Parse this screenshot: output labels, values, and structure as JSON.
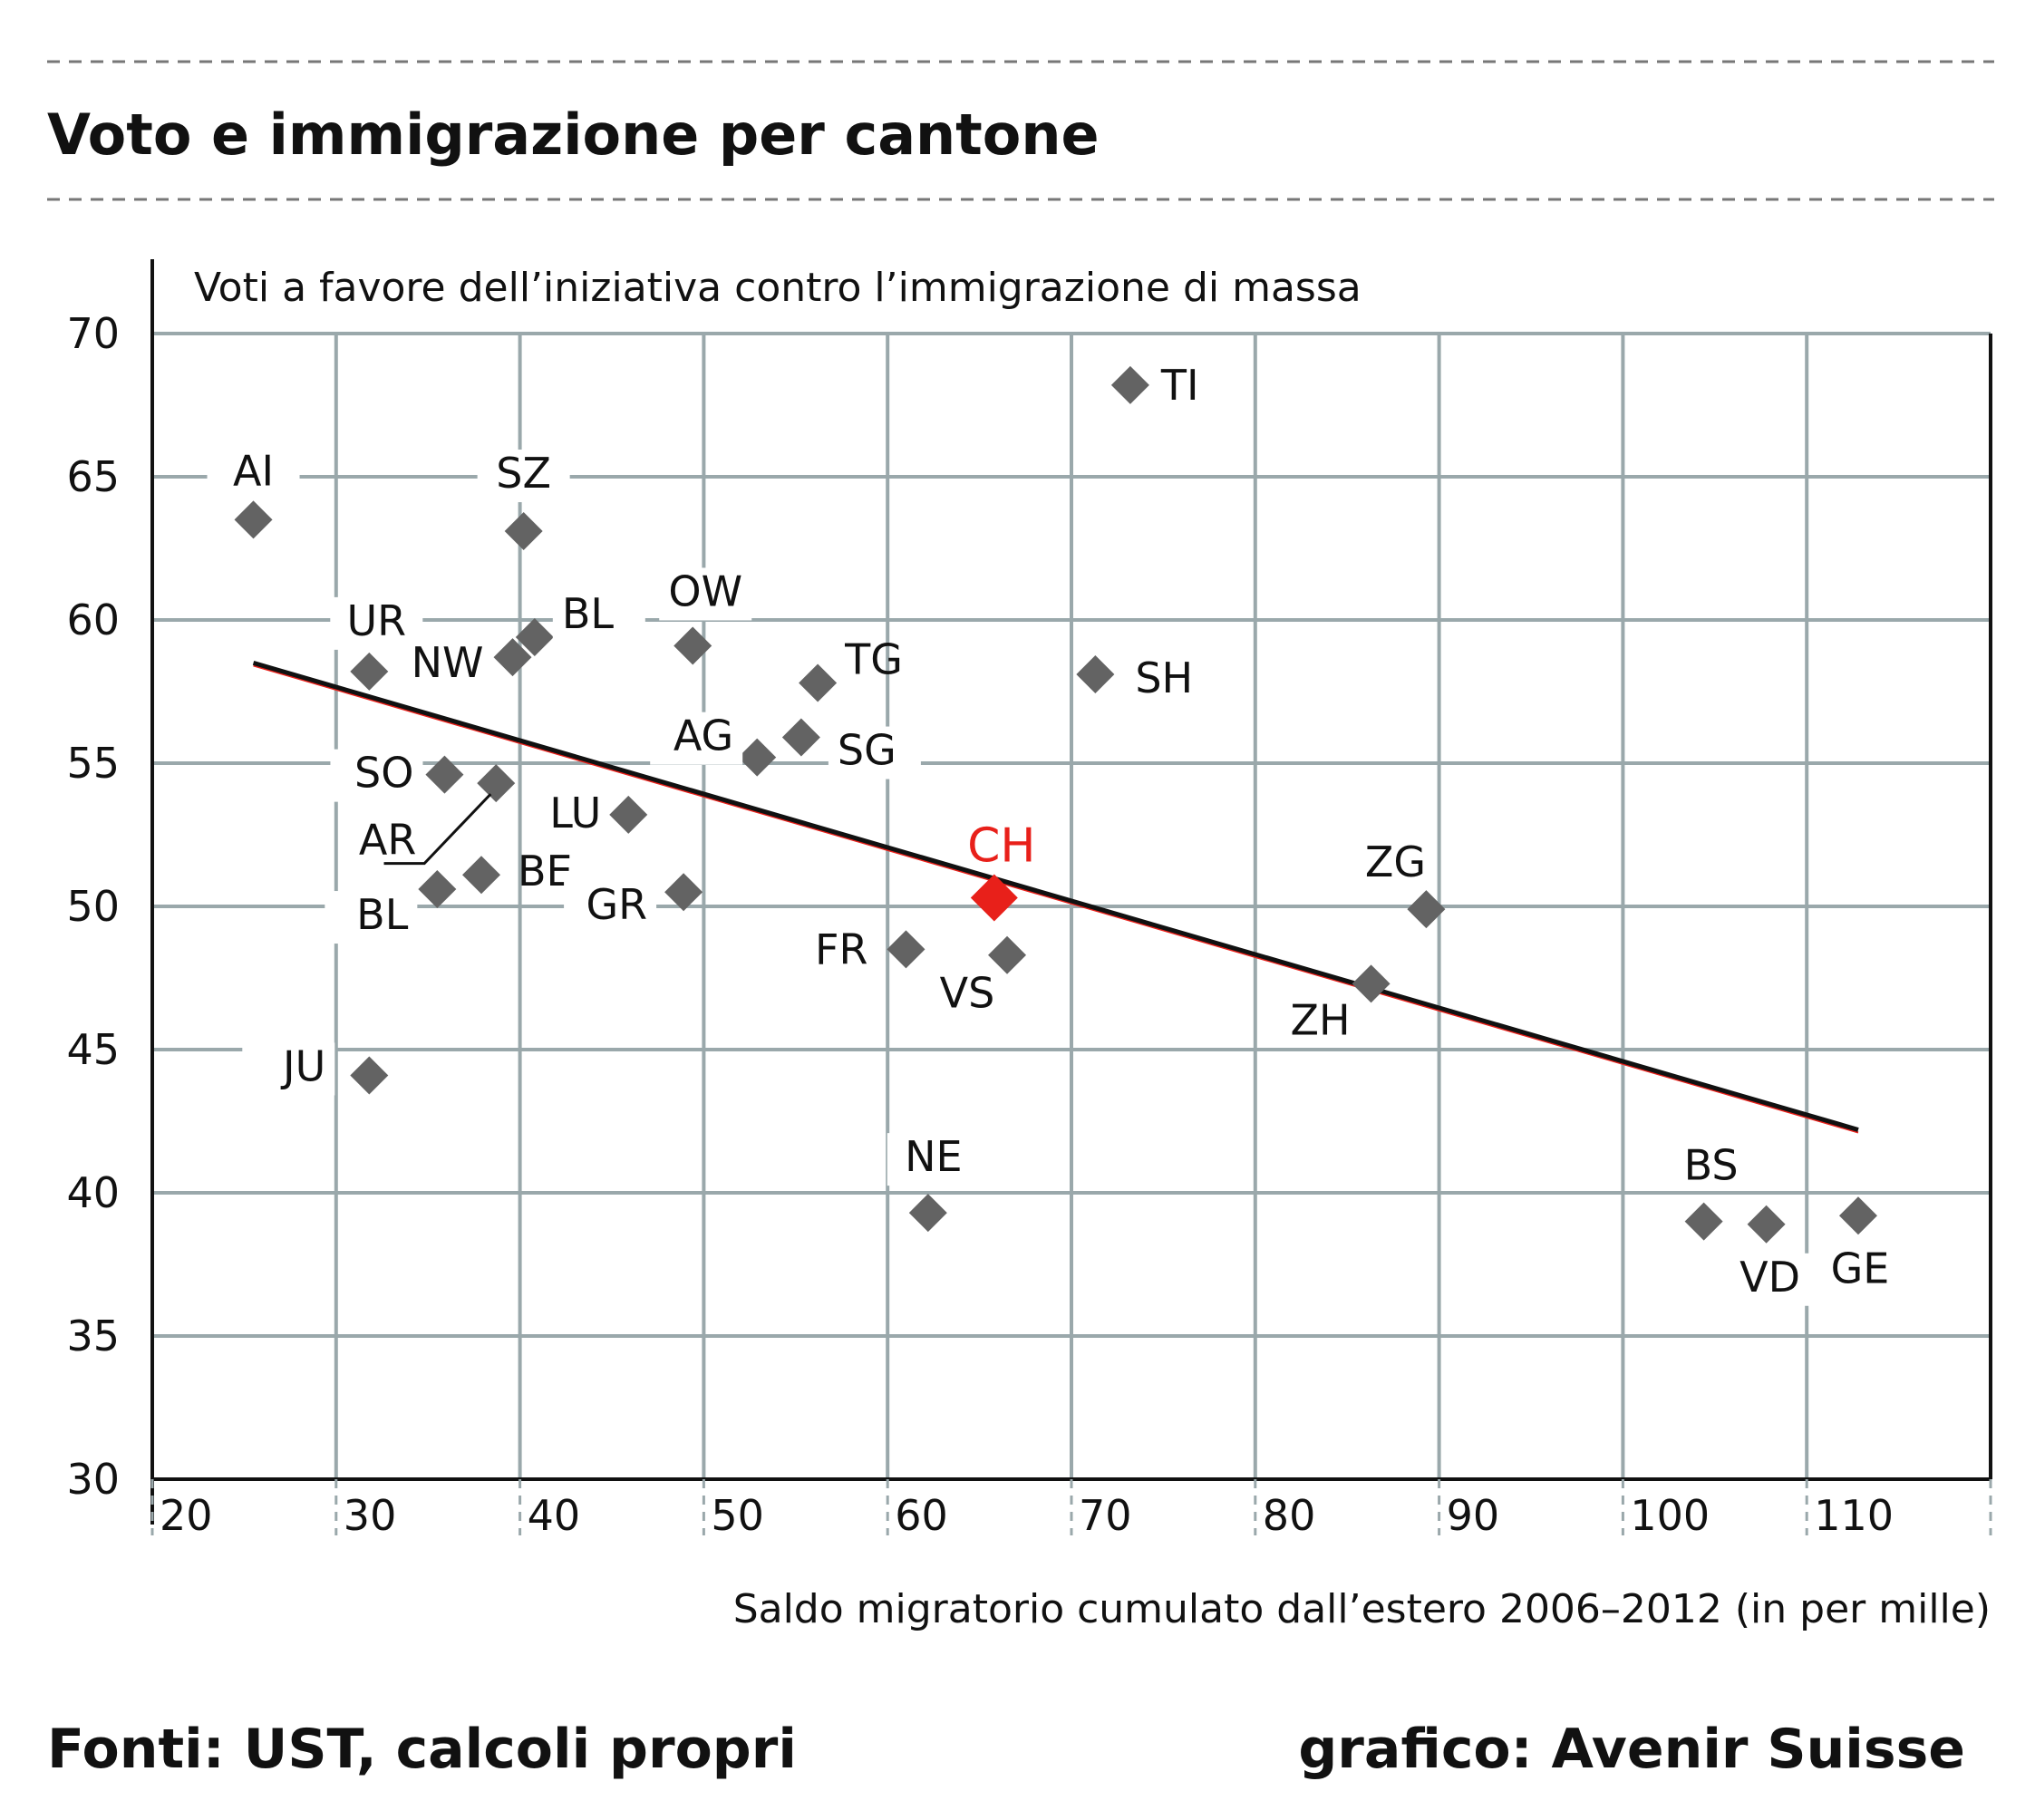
{
  "title": "Voto e immigrazione per cantone",
  "source": "Fonti: UST, calcoli propri",
  "credit": "grafico: Avenir Suisse",
  "colors": {
    "grid": "#9aa8ab",
    "marker": "#636363",
    "highlight": "#e8201a",
    "axis": "#111111",
    "trend": "#111111"
  },
  "chart_data": {
    "type": "scatter",
    "title": "Voto e immigrazione per cantone",
    "ylabel": "Voti a favore dell’iniziativa contro l’immigrazione di massa",
    "xlabel": "Saldo migratorio cumulato dall’estero 2006–2012 (in per mille)",
    "xlim": [
      20,
      120
    ],
    "ylim": [
      30,
      70
    ],
    "xticks": [
      20,
      30,
      40,
      50,
      60,
      70,
      80,
      90,
      100,
      110
    ],
    "yticks": [
      30,
      35,
      40,
      45,
      50,
      55,
      60,
      65,
      70
    ],
    "grid": true,
    "points": [
      {
        "name": "TI",
        "x": 73.2,
        "y": 68.2
      },
      {
        "name": "AI",
        "x": 25.5,
        "y": 63.5
      },
      {
        "name": "SZ",
        "x": 40.2,
        "y": 63.1
      },
      {
        "name": "UR",
        "x": 31.8,
        "y": 58.2
      },
      {
        "name": "NW",
        "x": 39.6,
        "y": 58.7
      },
      {
        "name": "BL",
        "x": 40.8,
        "y": 59.4
      },
      {
        "name": "OW",
        "x": 49.4,
        "y": 59.1
      },
      {
        "name": "TG",
        "x": 56.2,
        "y": 57.8
      },
      {
        "name": "SH",
        "x": 71.3,
        "y": 58.1
      },
      {
        "name": "AG",
        "x": 52.9,
        "y": 55.2
      },
      {
        "name": "SG",
        "x": 55.3,
        "y": 55.9
      },
      {
        "name": "SO",
        "x": 35.9,
        "y": 54.6
      },
      {
        "name": "AR",
        "x": 38.7,
        "y": 54.3
      },
      {
        "name": "LU",
        "x": 45.9,
        "y": 53.2
      },
      {
        "name": "BL",
        "x": 35.5,
        "y": 50.6
      },
      {
        "name": "BE",
        "x": 37.9,
        "y": 51.1
      },
      {
        "name": "GR",
        "x": 48.9,
        "y": 50.5
      },
      {
        "name": "CH",
        "x": 65.8,
        "y": 50.3
      },
      {
        "name": "FR",
        "x": 61.0,
        "y": 48.5
      },
      {
        "name": "VS",
        "x": 66.5,
        "y": 48.3
      },
      {
        "name": "ZG",
        "x": 89.3,
        "y": 49.9
      },
      {
        "name": "ZH",
        "x": 86.3,
        "y": 47.3
      },
      {
        "name": "JU",
        "x": 31.8,
        "y": 44.1
      },
      {
        "name": "NE",
        "x": 62.2,
        "y": 39.3
      },
      {
        "name": "BS",
        "x": 104.4,
        "y": 39.0
      },
      {
        "name": "VD",
        "x": 107.8,
        "y": 38.9
      },
      {
        "name": "GE",
        "x": 112.8,
        "y": 39.2
      }
    ],
    "highlight": "CH",
    "trend_line": {
      "x": [
        25.5,
        112.8
      ],
      "y": [
        58.5,
        42.2
      ]
    }
  }
}
